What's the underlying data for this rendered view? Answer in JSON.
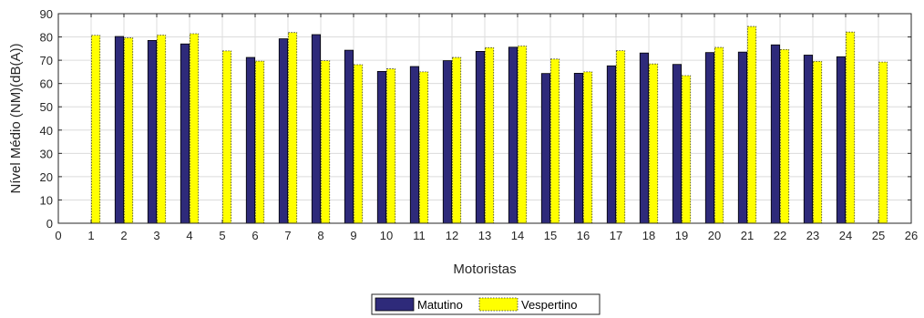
{
  "chart_data": {
    "type": "bar",
    "xlabel": "Motoristas",
    "ylabel": "Nível Médio (NM)(dB(A))",
    "xlim": [
      0,
      26
    ],
    "ylim": [
      0,
      90
    ],
    "x_ticks": [
      0,
      1,
      2,
      3,
      4,
      5,
      6,
      7,
      8,
      9,
      10,
      11,
      12,
      13,
      14,
      15,
      16,
      17,
      18,
      19,
      20,
      21,
      22,
      23,
      24,
      25,
      26
    ],
    "y_ticks": [
      0,
      10,
      20,
      30,
      40,
      50,
      60,
      70,
      80,
      90
    ],
    "grid": true,
    "legend_position": "bottom-center",
    "categories": [
      1,
      2,
      3,
      4,
      5,
      6,
      7,
      8,
      9,
      10,
      11,
      12,
      13,
      14,
      15,
      16,
      17,
      18,
      19,
      20,
      21,
      22,
      23,
      24,
      25
    ],
    "series": [
      {
        "name": "Matutino",
        "color": "#2e2a7a",
        "values": [
          0,
          80.2,
          78.5,
          77.0,
          0,
          71.2,
          79.2,
          81.0,
          74.3,
          65.2,
          67.3,
          69.8,
          73.8,
          75.6,
          64.3,
          64.4,
          67.6,
          73.1,
          68.2,
          73.3,
          73.5,
          76.6,
          72.2,
          71.5,
          0
        ]
      },
      {
        "name": "Vespertino",
        "color": "#ffff00",
        "values": [
          80.7,
          79.6,
          80.8,
          81.4,
          74.0,
          69.6,
          81.9,
          69.8,
          68.1,
          66.3,
          65.0,
          71.2,
          75.4,
          76.1,
          70.5,
          65.0,
          74.1,
          68.4,
          63.4,
          75.5,
          84.5,
          74.6,
          69.5,
          82.1,
          69.2
        ]
      }
    ]
  }
}
